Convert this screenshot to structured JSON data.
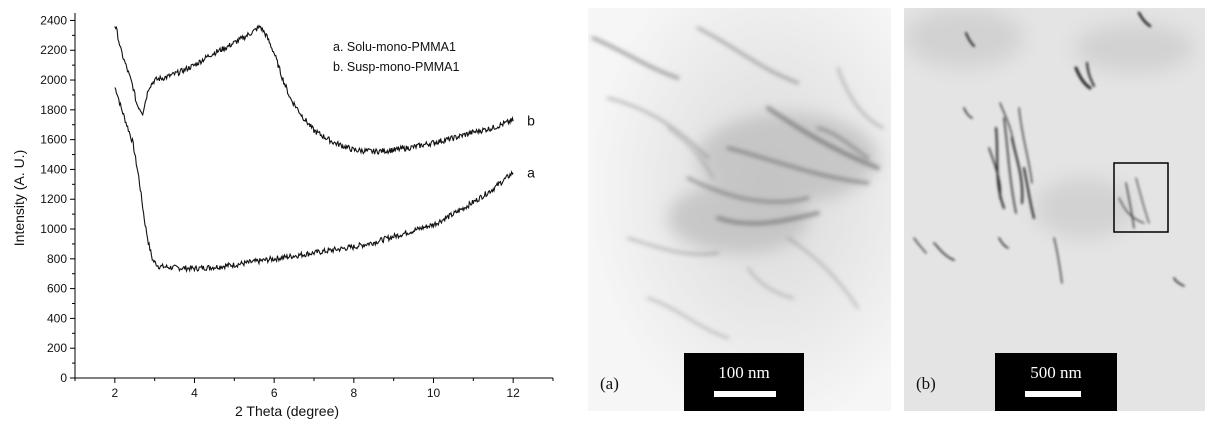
{
  "chart_data": {
    "type": "line",
    "title": "",
    "xlabel": "2 Theta (degree)",
    "ylabel": "Intensity (A. U.)",
    "xlim": [
      1,
      13
    ],
    "ylim": [
      0,
      2450
    ],
    "xticks": [
      "2",
      "4",
      "6",
      "8",
      "10",
      "12"
    ],
    "yticks": [
      "0",
      "200",
      "400",
      "600",
      "800",
      "1000",
      "1200",
      "1400",
      "1600",
      "1800",
      "2000",
      "2200",
      "2400"
    ],
    "legend": [
      "a. Solu-mono-PMMA1",
      "b. Susp-mono-PMMA1"
    ],
    "legend_position": "top-right",
    "grid": false,
    "series": [
      {
        "label": "a",
        "x": [
          2.0,
          2.05,
          2.15,
          2.3,
          2.45,
          2.6,
          2.75,
          2.85,
          2.95,
          3.1,
          3.5,
          4.0,
          4.5,
          5.0,
          5.5,
          6.0,
          6.5,
          7.0,
          7.5,
          8.0,
          8.5,
          9.0,
          9.5,
          10.0,
          10.5,
          11.0,
          11.5,
          12.0
        ],
        "y": [
          1950,
          1920,
          1820,
          1700,
          1580,
          1350,
          1050,
          900,
          790,
          750,
          740,
          735,
          745,
          760,
          780,
          800,
          820,
          840,
          860,
          880,
          910,
          950,
          990,
          1030,
          1100,
          1180,
          1270,
          1380
        ]
      },
      {
        "label": "b",
        "x": [
          2.0,
          2.05,
          2.15,
          2.3,
          2.45,
          2.55,
          2.7,
          2.85,
          3.0,
          3.3,
          3.6,
          4.0,
          4.4,
          4.8,
          5.2,
          5.5,
          5.65,
          5.8,
          6.0,
          6.2,
          6.4,
          6.7,
          7.0,
          7.5,
          8.0,
          8.5,
          9.0,
          9.5,
          10.0,
          10.5,
          11.0,
          11.5,
          12.0
        ],
        "y": [
          2370,
          2330,
          2200,
          2080,
          1960,
          1840,
          1780,
          1950,
          2000,
          2020,
          2050,
          2100,
          2170,
          2220,
          2280,
          2330,
          2360,
          2300,
          2180,
          2020,
          1880,
          1760,
          1660,
          1580,
          1530,
          1520,
          1530,
          1550,
          1580,
          1610,
          1650,
          1680,
          1730
        ]
      }
    ]
  },
  "tem_a": {
    "panel_letter": "(a)",
    "scale_label": "100 nm"
  },
  "tem_b": {
    "panel_letter": "(b)",
    "scale_label": "500 nm"
  }
}
